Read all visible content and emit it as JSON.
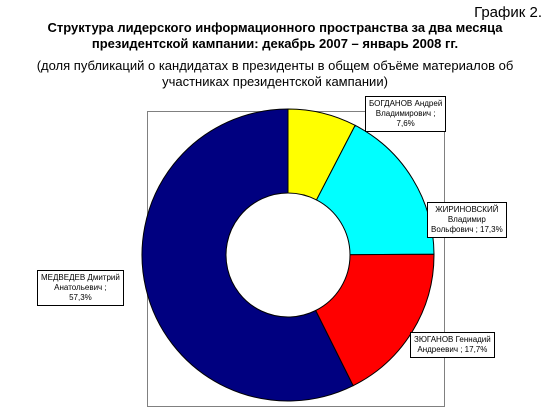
{
  "header": {
    "figure_number": "График 2.",
    "title_line1": "Структура лидерского информационного пространства за два месяца",
    "title_line2": "президентской кампании: декабрь 2007 – январь 2008 гг.",
    "subtitle_line1": "(доля публикаций о кандидатах в президенты в общем объёме материалов об",
    "subtitle_line2": "участниках президентской кампании)"
  },
  "chart_data": {
    "type": "pie",
    "donut": true,
    "slices": [
      {
        "name": "БОГДАНОВ Андрей Владимирович",
        "value": 7.6,
        "color": "#ffff00",
        "label_lines": [
          "БОГДАНОВ Андрей",
          "Владимирович ;",
          "7,6%"
        ]
      },
      {
        "name": "ЖИРИНОВСКИЙ Владимир Вольфович",
        "value": 17.3,
        "color": "#00ffff",
        "label_lines": [
          "ЖИРИНОВСКИЙ",
          "Владимир",
          "Вольфович ; 17,3%"
        ]
      },
      {
        "name": "ЗЮГАНОВ Геннадий Андреевич",
        "value": 17.7,
        "color": "#ff0000",
        "label_lines": [
          "ЗЮГАНОВ Геннадий",
          "Андреевич ; 17,7%"
        ]
      },
      {
        "name": "МЕДВЕДЕВ Дмитрий Анатольевич",
        "value": 57.3,
        "color": "#000080",
        "label_lines": [
          "МЕДВЕДЕВ Дмитрий",
          "Анатольевич ;",
          "57,3%"
        ]
      }
    ],
    "start": "12 o'clock",
    "direction": "clockwise"
  }
}
